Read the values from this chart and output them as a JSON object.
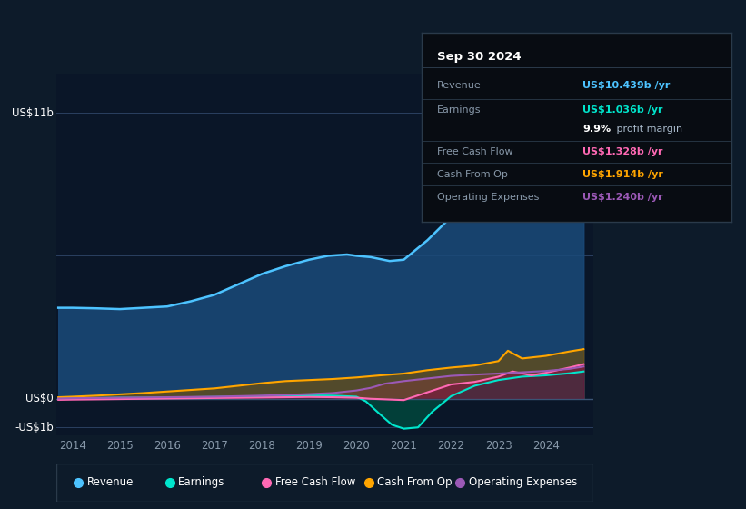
{
  "bg_color": "#0d1b2a",
  "plot_bg_color": "#0a1628",
  "title_date": "Sep 30 2024",
  "info_box": {
    "Revenue": {
      "value": "US$10.439b /yr",
      "color": "#4dc3ff"
    },
    "Earnings": {
      "value": "US$1.036b /yr",
      "color": "#00e5cc"
    },
    "profit_margin": {
      "value": "9.9%",
      "label": " profit margin",
      "color": "#ffffff"
    },
    "Free Cash Flow": {
      "value": "US$1.328b /yr",
      "color": "#ff69b4"
    },
    "Cash From Op": {
      "value": "US$1.914b /yr",
      "color": "#ffa500"
    },
    "Operating Expenses": {
      "value": "US$1.240b /yr",
      "color": "#9b59b6"
    }
  },
  "legend": [
    {
      "label": "Revenue",
      "color": "#4dc3ff"
    },
    {
      "label": "Earnings",
      "color": "#00e5cc"
    },
    {
      "label": "Free Cash Flow",
      "color": "#ff69b4"
    },
    {
      "label": "Cash From Op",
      "color": "#ffa500"
    },
    {
      "label": "Operating Expenses",
      "color": "#9b59b6"
    }
  ],
  "ylabel_top": "US$11b",
  "ylabel_zero": "US$0",
  "ylabel_neg": "-US$1b",
  "ylim": [
    -1.4,
    12.5
  ],
  "xlim": [
    2013.65,
    2025.0
  ],
  "years_ticks": [
    2014,
    2015,
    2016,
    2017,
    2018,
    2019,
    2020,
    2021,
    2022,
    2023,
    2024
  ],
  "grid_vals": [
    11.0,
    5.5,
    0.0,
    -1.1
  ],
  "revenue": {
    "x": [
      2013.7,
      2014.0,
      2014.5,
      2015.0,
      2015.5,
      2016.0,
      2016.5,
      2017.0,
      2017.5,
      2018.0,
      2018.5,
      2019.0,
      2019.4,
      2019.8,
      2020.0,
      2020.3,
      2020.7,
      2021.0,
      2021.5,
      2022.0,
      2022.5,
      2023.0,
      2023.5,
      2024.0,
      2024.5,
      2024.8
    ],
    "y": [
      3.5,
      3.5,
      3.48,
      3.45,
      3.5,
      3.55,
      3.75,
      4.0,
      4.4,
      4.8,
      5.1,
      5.35,
      5.5,
      5.55,
      5.5,
      5.45,
      5.3,
      5.35,
      6.1,
      7.0,
      7.8,
      8.6,
      9.1,
      9.5,
      9.9,
      10.5
    ]
  },
  "earnings": {
    "x": [
      2013.7,
      2014.0,
      2014.5,
      2015.0,
      2015.5,
      2016.0,
      2016.5,
      2017.0,
      2017.5,
      2018.0,
      2018.5,
      2019.0,
      2019.5,
      2020.0,
      2020.2,
      2020.5,
      2020.75,
      2021.0,
      2021.3,
      2021.6,
      2022.0,
      2022.5,
      2023.0,
      2023.5,
      2024.0,
      2024.5,
      2024.8
    ],
    "y": [
      0.02,
      0.02,
      0.03,
      0.04,
      0.04,
      0.05,
      0.06,
      0.07,
      0.08,
      0.1,
      0.12,
      0.13,
      0.12,
      0.08,
      -0.1,
      -0.6,
      -1.0,
      -1.15,
      -1.1,
      -0.5,
      0.1,
      0.5,
      0.72,
      0.85,
      0.9,
      0.98,
      1.05
    ]
  },
  "free_cash_flow": {
    "x": [
      2013.7,
      2014.0,
      2014.5,
      2015.0,
      2015.5,
      2016.0,
      2016.5,
      2017.0,
      2017.5,
      2018.0,
      2018.5,
      2019.0,
      2019.5,
      2020.0,
      2020.3,
      2020.6,
      2021.0,
      2021.5,
      2022.0,
      2022.5,
      2023.0,
      2023.3,
      2023.7,
      2024.0,
      2024.5,
      2024.8
    ],
    "y": [
      -0.04,
      -0.03,
      -0.02,
      -0.01,
      0.0,
      0.01,
      0.02,
      0.03,
      0.04,
      0.05,
      0.06,
      0.07,
      0.06,
      0.04,
      0.0,
      -0.02,
      -0.05,
      0.25,
      0.55,
      0.65,
      0.85,
      1.05,
      0.9,
      1.0,
      1.2,
      1.33
    ]
  },
  "cash_from_op": {
    "x": [
      2013.7,
      2014.0,
      2014.5,
      2015.0,
      2015.5,
      2016.0,
      2016.5,
      2017.0,
      2017.5,
      2018.0,
      2018.5,
      2019.0,
      2019.5,
      2020.0,
      2020.5,
      2021.0,
      2021.5,
      2022.0,
      2022.5,
      2023.0,
      2023.2,
      2023.5,
      2024.0,
      2024.5,
      2024.8
    ],
    "y": [
      0.06,
      0.08,
      0.12,
      0.17,
      0.22,
      0.28,
      0.34,
      0.4,
      0.5,
      0.6,
      0.68,
      0.72,
      0.76,
      0.82,
      0.9,
      0.97,
      1.1,
      1.2,
      1.28,
      1.45,
      1.85,
      1.55,
      1.65,
      1.82,
      1.91
    ]
  },
  "operating_expenses": {
    "x": [
      2013.7,
      2014.0,
      2014.5,
      2015.0,
      2015.5,
      2016.0,
      2016.5,
      2017.0,
      2017.5,
      2018.0,
      2018.5,
      2019.0,
      2019.5,
      2020.0,
      2020.3,
      2020.6,
      2021.0,
      2021.5,
      2022.0,
      2022.5,
      2023.0,
      2023.5,
      2024.0,
      2024.5,
      2024.8
    ],
    "y": [
      0.01,
      0.02,
      0.03,
      0.04,
      0.05,
      0.06,
      0.07,
      0.08,
      0.1,
      0.12,
      0.15,
      0.18,
      0.22,
      0.32,
      0.42,
      0.58,
      0.68,
      0.78,
      0.88,
      0.93,
      0.97,
      1.02,
      1.07,
      1.15,
      1.24
    ]
  }
}
